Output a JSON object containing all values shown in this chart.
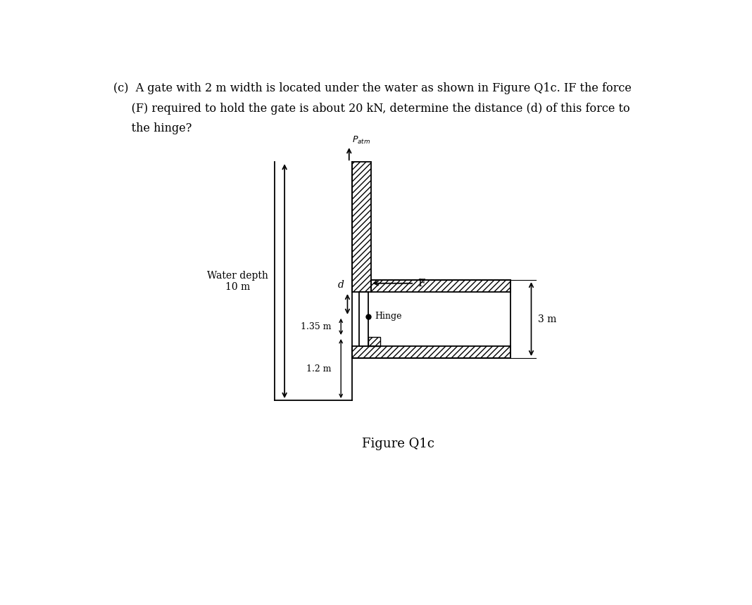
{
  "line1": "(c)  A gate with 2 m width is located under the water as shown in Figure Q1c. IF the force",
  "line2": "     (F) required to hold the gate is about 20 kN, determine the distance (d) of this force to",
  "line3": "     the hinge?",
  "figure_caption": "Figure Q1c",
  "water_depth_label": "Water depth\n10 m",
  "patm_label": "$P_{atm}$",
  "hinge_label": "Hinge",
  "F_label": "F",
  "d_label": "d",
  "dim_135_label": "1.35 m",
  "dim_12_label": "1.2 m",
  "dim_3m_label": "3 m",
  "bg_color": "#ffffff"
}
